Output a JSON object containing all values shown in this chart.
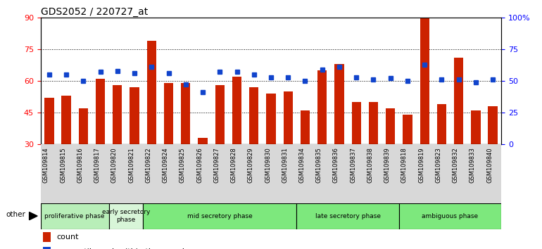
{
  "title": "GDS2052 / 220727_at",
  "samples": [
    "GSM109814",
    "GSM109815",
    "GSM109816",
    "GSM109817",
    "GSM109820",
    "GSM109821",
    "GSM109822",
    "GSM109824",
    "GSM109825",
    "GSM109826",
    "GSM109827",
    "GSM109828",
    "GSM109829",
    "GSM109830",
    "GSM109831",
    "GSM109834",
    "GSM109835",
    "GSM109836",
    "GSM109837",
    "GSM109838",
    "GSM109839",
    "GSM109818",
    "GSM109819",
    "GSM109823",
    "GSM109832",
    "GSM109833",
    "GSM109840"
  ],
  "counts": [
    52,
    53,
    47,
    61,
    58,
    57,
    79,
    59,
    59,
    33,
    58,
    62,
    57,
    54,
    55,
    46,
    65,
    68,
    50,
    50,
    47,
    44,
    91,
    49,
    71,
    46,
    48
  ],
  "percentiles": [
    55,
    55,
    50,
    57,
    58,
    56,
    61,
    56,
    47,
    41,
    57,
    57,
    55,
    53,
    53,
    50,
    59,
    61,
    53,
    51,
    52,
    50,
    63,
    51,
    51,
    49,
    51
  ],
  "phases": [
    {
      "label": "proliferative phase",
      "start": 0,
      "end": 4,
      "color": "#b8eeb8"
    },
    {
      "label": "early secretory\nphase",
      "start": 4,
      "end": 6,
      "color": "#d8f5d8"
    },
    {
      "label": "mid secretory phase",
      "start": 6,
      "end": 15,
      "color": "#7de87d"
    },
    {
      "label": "late secretory phase",
      "start": 15,
      "end": 21,
      "color": "#7de87d"
    },
    {
      "label": "ambiguous phase",
      "start": 21,
      "end": 27,
      "color": "#7de87d"
    }
  ],
  "ylim_left": [
    30,
    90
  ],
  "ylim_right": [
    0,
    100
  ],
  "yticks_left": [
    30,
    45,
    60,
    75,
    90
  ],
  "yticks_right": [
    0,
    25,
    50,
    75,
    100
  ],
  "bar_color": "#cc2200",
  "dot_color": "#1144cc",
  "title_fontsize": 10,
  "other_label": "other"
}
